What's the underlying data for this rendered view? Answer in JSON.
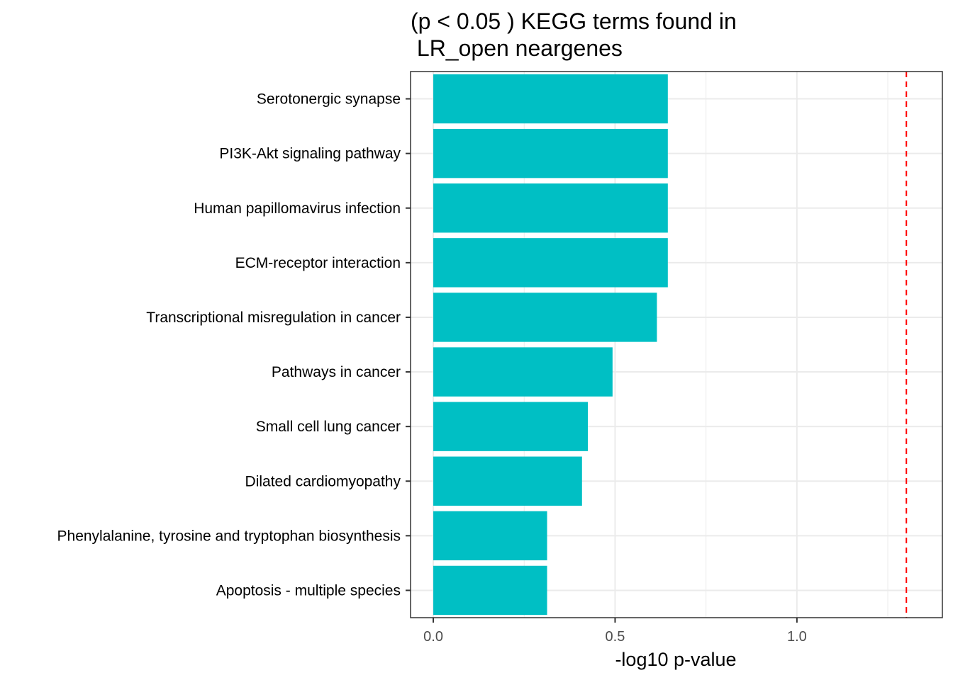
{
  "chart_data": {
    "type": "bar",
    "orientation": "horizontal",
    "title_lines": [
      "(p < 0.05 ) KEGG terms found in",
      " LR_open neargenes"
    ],
    "xlabel": "-log10 p-value",
    "ylabel": "",
    "categories": [
      "Serotonergic synapse",
      "PI3K-Akt signaling pathway",
      "Human papillomavirus infection",
      "ECM-receptor interaction",
      "Transcriptional misregulation in cancer",
      "Pathways in cancer",
      "Small cell lung cancer",
      "Dilated cardiomyopathy",
      "Phenylalanine, tyrosine and tryptophan biosynthesis",
      "Apoptosis - multiple species"
    ],
    "values": [
      0.645,
      0.645,
      0.645,
      0.645,
      0.615,
      0.493,
      0.425,
      0.409,
      0.313,
      0.313
    ],
    "xlim": [
      -0.0625,
      1.4
    ],
    "xticks": [
      0.0,
      0.5,
      1.0
    ],
    "xtick_labels": [
      "0.0",
      "0.5",
      "1.0"
    ],
    "reference_line": {
      "x": 1.301,
      "style": "dashed",
      "color": "#ff0000"
    },
    "bar_color": "#00bfc4",
    "grid": true,
    "legend": "none"
  }
}
